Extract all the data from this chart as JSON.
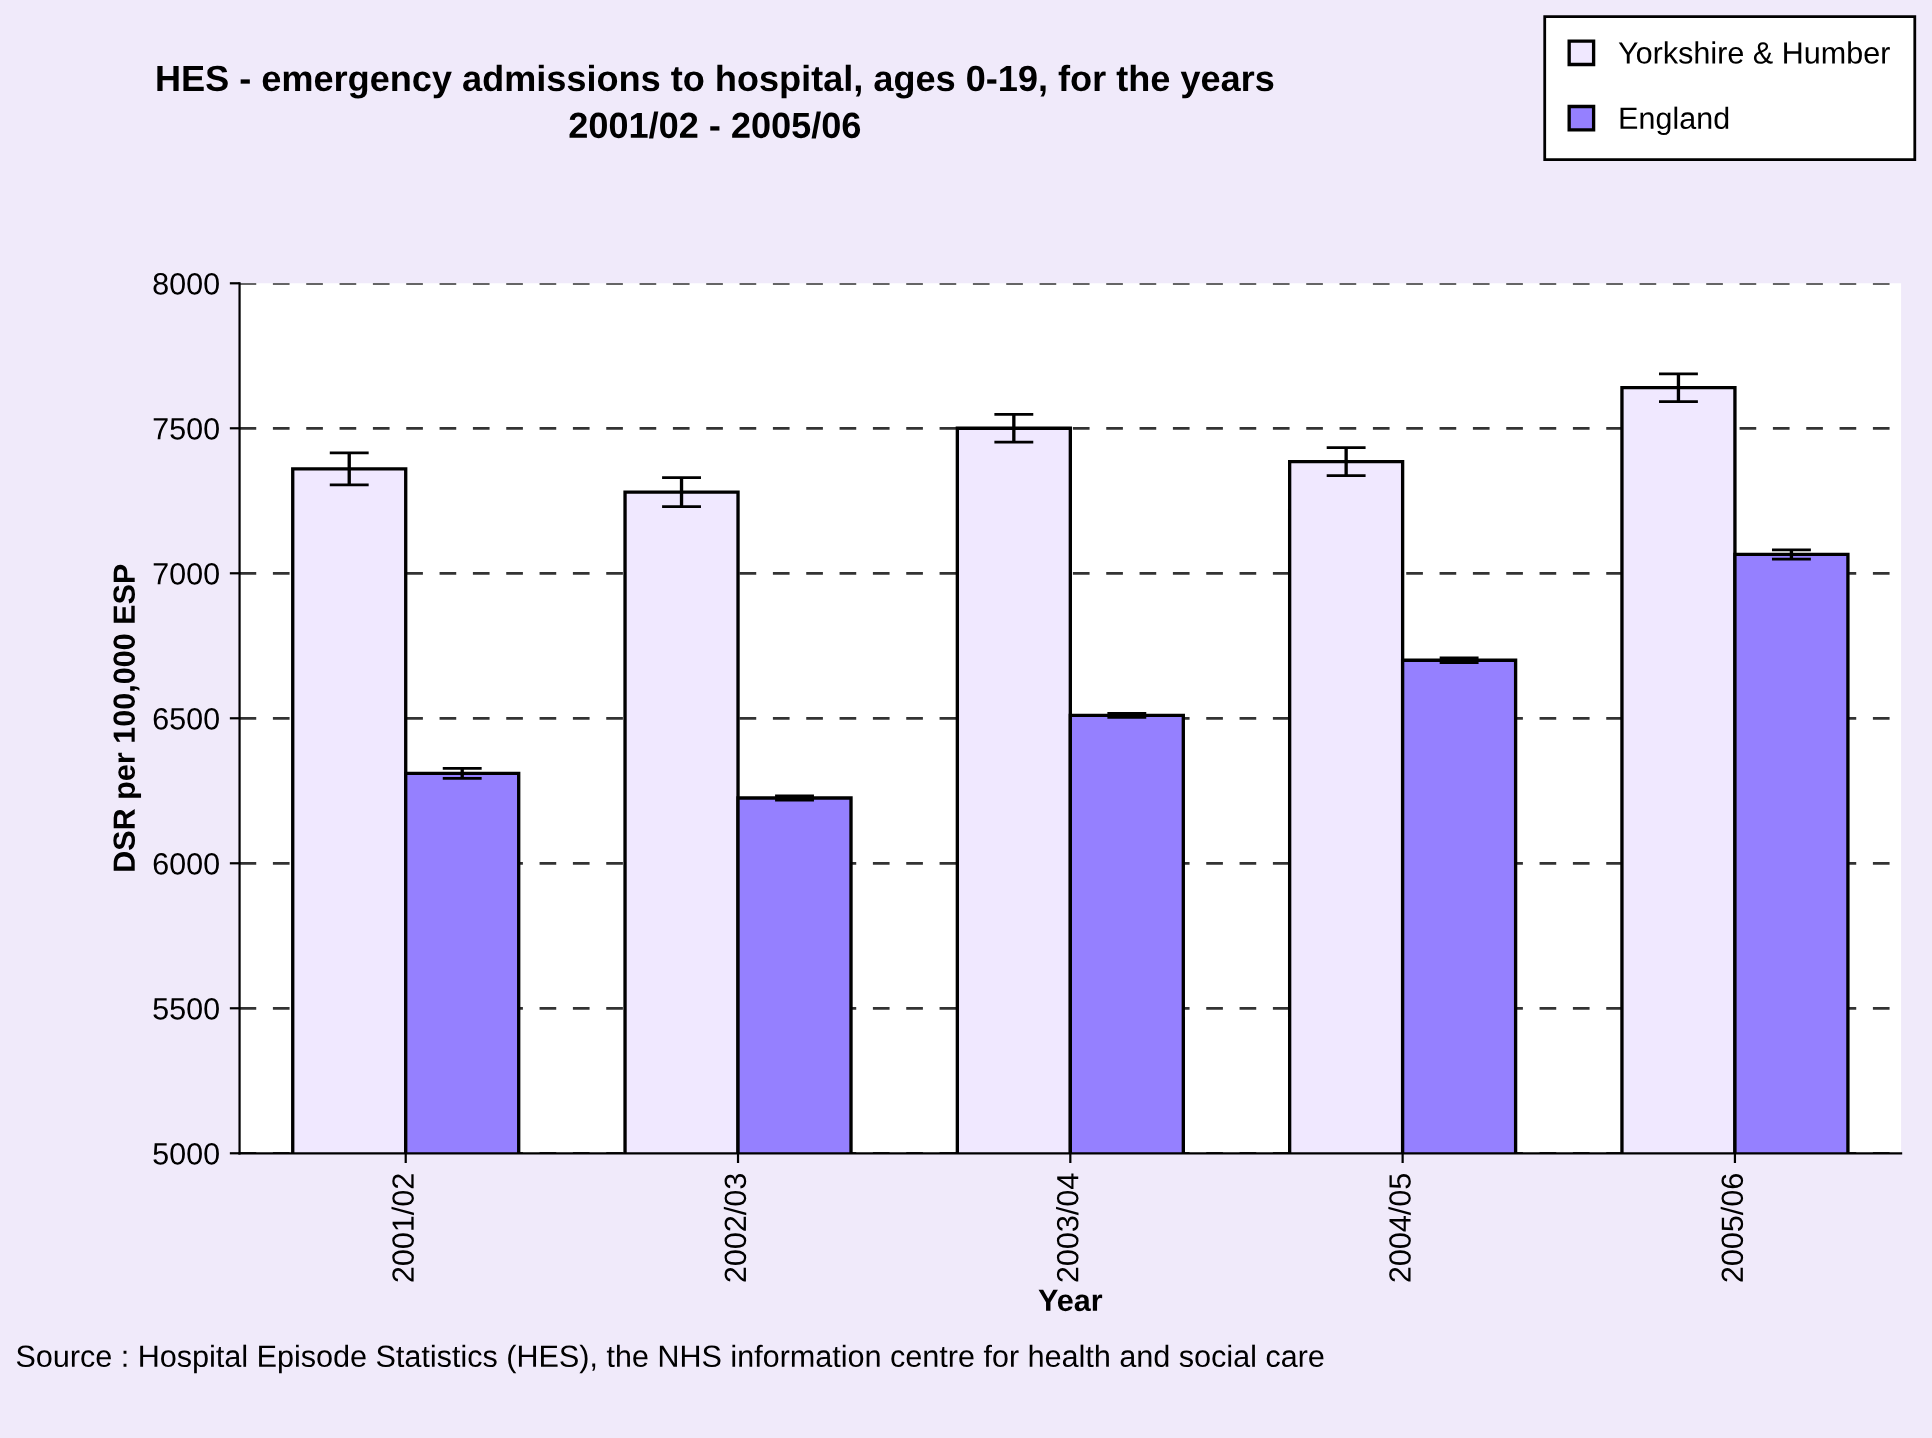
{
  "chart_data": {
    "type": "bar",
    "title": "HES - emergency admissions to hospital, ages 0-19, for the years\n2001/02 - 2005/06",
    "xlabel": "Year",
    "ylabel": "DSR per 100,000 ESP",
    "categories": [
      "2001/02",
      "2002/03",
      "2003/04",
      "2004/05",
      "2005/06"
    ],
    "series": [
      {
        "name": "Yorkshire & Humber",
        "color": "#f0e8ff",
        "values": [
          7360,
          7280,
          7500,
          7385,
          7640
        ],
        "errors": [
          55,
          50,
          48,
          48,
          48
        ]
      },
      {
        "name": "England",
        "color": "#9580ff",
        "values": [
          6310,
          6225,
          6510,
          6700,
          7065
        ],
        "errors": [
          17,
          7,
          7,
          8,
          16
        ]
      }
    ],
    "ylim": [
      5000,
      8000
    ],
    "yticks": [
      5000,
      5500,
      6000,
      6500,
      7000,
      7500,
      8000
    ],
    "grid": "y",
    "legend": "top right",
    "annotations": [
      "Source : Hospital Episode Statistics (HES), the NHS information centre for health and social care"
    ]
  }
}
